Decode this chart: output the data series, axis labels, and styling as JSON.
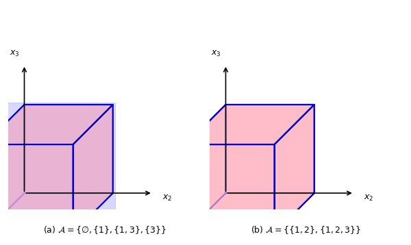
{
  "fig_width": 6.0,
  "fig_height": 3.58,
  "dpi": 100,
  "cube_color": "#ffb0c0",
  "cube_edge_color": "#0000cc",
  "cube_alpha": 0.45,
  "plane_color": "#aaaaff",
  "plane_alpha": 0.45,
  "axis_color": "#000000",
  "caption_a": "(a) $\\mathcal{A} = \\{\\emptyset, \\{1\\}, \\{1,3\\}, \\{3\\}\\}$",
  "caption_b": "(b) $\\mathcal{A} = \\{\\{1,2\\}, \\{1,2,3\\}\\}$"
}
